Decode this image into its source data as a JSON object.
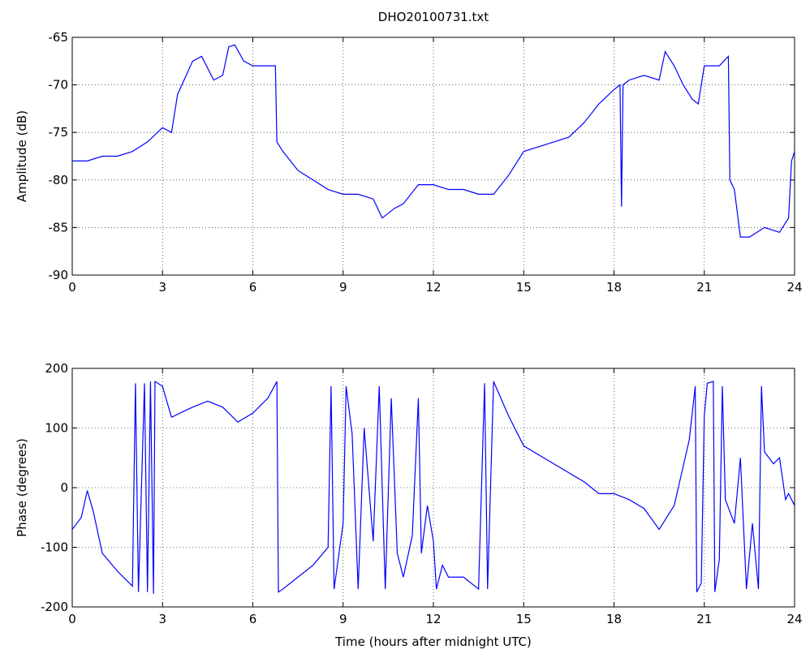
{
  "chart_data": [
    {
      "type": "line",
      "title": "DHO20100731.txt",
      "ylabel": "Amplitude (dB)",
      "x": [
        0,
        0.5,
        1,
        1.5,
        2,
        2.5,
        3,
        3.3,
        3.5,
        4,
        4.3,
        4.7,
        5,
        5.2,
        5.4,
        5.7,
        6,
        6.5,
        6.75,
        6.8,
        7,
        7.5,
        8,
        8.5,
        9,
        9.5,
        10,
        10.3,
        10.7,
        11,
        11.5,
        12,
        12.5,
        13,
        13.5,
        14,
        14.5,
        15,
        15.5,
        16,
        16.5,
        17,
        17.5,
        18,
        18.2,
        18.25,
        18.3,
        18.5,
        19,
        19.5,
        19.7,
        20,
        20.3,
        20.6,
        20.8,
        21,
        21.5,
        21.8,
        21.85,
        22,
        22.2,
        22.5,
        23,
        23.5,
        23.8,
        23.9,
        24
      ],
      "series": [
        {
          "color": "#0000ff",
          "values": [
            -78,
            -78,
            -77.5,
            -77.5,
            -77,
            -76,
            -74.5,
            -75,
            -71,
            -67.5,
            -67,
            -69.5,
            -69,
            -66,
            -65.8,
            -67.5,
            -68,
            -68,
            -68,
            -76,
            -77,
            -79,
            -80,
            -81,
            -81.5,
            -81.5,
            -82,
            -84,
            -83,
            -82.5,
            -80.5,
            -80.5,
            -81,
            -81,
            -81.5,
            -81.5,
            -79.5,
            -77,
            -76.5,
            -76,
            -75.5,
            -74,
            -72,
            -70.5,
            -70,
            -82.8,
            -70,
            -69.5,
            -69,
            -69.5,
            -66.5,
            -68,
            -70,
            -71.5,
            -72,
            -68,
            -68,
            -67,
            -80,
            -81,
            -86,
            -86,
            -85,
            -85.5,
            -84,
            -78,
            -77
          ]
        }
      ],
      "xlim": [
        0,
        24
      ],
      "ylim": [
        -90,
        -65
      ],
      "xticks": [
        0,
        3,
        6,
        9,
        12,
        15,
        18,
        21,
        24
      ],
      "yticks": [
        -90,
        -85,
        -80,
        -75,
        -70,
        -65
      ],
      "grid": true
    },
    {
      "type": "line",
      "ylabel": "Phase (degrees)",
      "xlabel": "Time (hours after midnight UTC)",
      "x": [
        0,
        0.3,
        0.5,
        0.7,
        1,
        1.5,
        2,
        2.1,
        2.2,
        2.4,
        2.5,
        2.6,
        2.7,
        2.75,
        3,
        3.2,
        3.3,
        3.7,
        4,
        4.5,
        5,
        5.5,
        6,
        6.5,
        6.8,
        6.85,
        7,
        7.5,
        8,
        8.5,
        8.6,
        8.7,
        9,
        9.1,
        9.3,
        9.5,
        9.7,
        10,
        10.2,
        10.4,
        10.6,
        10.8,
        11,
        11.3,
        11.5,
        11.6,
        11.8,
        12,
        12.1,
        12.3,
        12.5,
        13,
        13.5,
        13.7,
        13.8,
        14,
        14.5,
        15,
        16,
        17,
        17.5,
        18,
        18.5,
        19,
        19.5,
        20,
        20.5,
        20.7,
        20.75,
        20.9,
        21,
        21.1,
        21.3,
        21.35,
        21.5,
        21.6,
        21.7,
        22,
        22.2,
        22.4,
        22.6,
        22.8,
        22.9,
        23,
        23.3,
        23.5,
        23.7,
        23.8,
        24
      ],
      "series": [
        {
          "color": "#0000ff",
          "values": [
            -70,
            -50,
            -5,
            -40,
            -110,
            -140,
            -165,
            175,
            -175,
            175,
            -175,
            178,
            -178,
            178,
            170,
            135,
            118,
            128,
            135,
            145,
            135,
            110,
            125,
            150,
            178,
            -175,
            -170,
            -150,
            -130,
            -100,
            170,
            -170,
            -60,
            170,
            90,
            -170,
            100,
            -90,
            170,
            -170,
            150,
            -110,
            -150,
            -80,
            150,
            -110,
            -30,
            -90,
            -170,
            -130,
            -150,
            -150,
            -170,
            175,
            -170,
            178,
            120,
            70,
            40,
            10,
            -10,
            -10,
            -20,
            -35,
            -70,
            -30,
            80,
            170,
            -175,
            -160,
            120,
            175,
            178,
            -175,
            -120,
            170,
            -20,
            -60,
            50,
            -170,
            -60,
            -170,
            170,
            60,
            40,
            50,
            -20,
            -10,
            -30
          ]
        }
      ],
      "xlim": [
        0,
        24
      ],
      "ylim": [
        -200,
        200
      ],
      "xticks": [
        0,
        3,
        6,
        9,
        12,
        15,
        18,
        21,
        24
      ],
      "yticks": [
        -200,
        -100,
        0,
        100,
        200
      ],
      "grid": true
    }
  ]
}
